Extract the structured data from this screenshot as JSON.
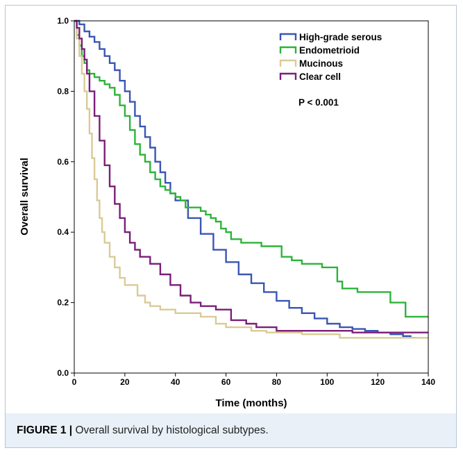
{
  "caption": {
    "label": "FIGURE 1 |",
    "text": " Overall survival by histological subtypes."
  },
  "chart_data": {
    "type": "line",
    "step": true,
    "xlabel": "Time (months)",
    "ylabel": "Overall survival",
    "xlim": [
      0,
      140
    ],
    "ylim": [
      0.0,
      1.0
    ],
    "xticks": [
      "0",
      "20",
      "40",
      "60",
      "80",
      "100",
      "120",
      "140"
    ],
    "yticks": [
      "0.0",
      "0.2",
      "0.4",
      "0.6",
      "0.8",
      "1.0"
    ],
    "grid": false,
    "legend_position": "top-right",
    "annotation": "P < 0.001",
    "series": [
      {
        "name": "High-grade serous",
        "color": "#3a55b4",
        "x": [
          0,
          2,
          4,
          6,
          8,
          10,
          12,
          14,
          16,
          18,
          20,
          22,
          24,
          26,
          28,
          30,
          32,
          34,
          36,
          38,
          40,
          45,
          50,
          55,
          60,
          65,
          70,
          75,
          80,
          85,
          90,
          95,
          100,
          105,
          110,
          115,
          120,
          125,
          130,
          133,
          135
        ],
        "y": [
          1.0,
          0.99,
          0.97,
          0.955,
          0.94,
          0.92,
          0.9,
          0.88,
          0.86,
          0.83,
          0.8,
          0.77,
          0.73,
          0.7,
          0.67,
          0.64,
          0.6,
          0.57,
          0.54,
          0.51,
          0.49,
          0.44,
          0.395,
          0.35,
          0.315,
          0.28,
          0.255,
          0.23,
          0.205,
          0.185,
          0.17,
          0.155,
          0.14,
          0.13,
          0.125,
          0.12,
          0.115,
          0.11,
          0.105,
          0.1,
          0.1
        ]
      },
      {
        "name": "Endometrioid",
        "color": "#2db33a",
        "x": [
          0,
          1,
          2,
          3,
          4,
          5,
          6,
          8,
          10,
          12,
          14,
          16,
          18,
          20,
          22,
          24,
          26,
          28,
          30,
          32,
          34,
          36,
          38,
          40,
          42,
          44,
          48,
          50,
          52,
          54,
          56,
          58,
          60,
          62,
          66,
          70,
          74,
          76,
          82,
          86,
          90,
          98,
          104,
          106,
          112,
          125,
          131,
          140
        ],
        "y": [
          1.0,
          0.96,
          0.93,
          0.9,
          0.88,
          0.86,
          0.85,
          0.84,
          0.83,
          0.82,
          0.81,
          0.79,
          0.76,
          0.73,
          0.69,
          0.65,
          0.62,
          0.6,
          0.57,
          0.55,
          0.53,
          0.52,
          0.51,
          0.5,
          0.49,
          0.47,
          0.47,
          0.46,
          0.45,
          0.44,
          0.43,
          0.41,
          0.4,
          0.38,
          0.37,
          0.37,
          0.36,
          0.36,
          0.33,
          0.32,
          0.31,
          0.3,
          0.26,
          0.24,
          0.23,
          0.2,
          0.16,
          0.16
        ]
      },
      {
        "name": "Mucinous",
        "color": "#d9cb95",
        "x": [
          0,
          1,
          2,
          3,
          4,
          5,
          6,
          7,
          8,
          9,
          10,
          11,
          12,
          14,
          16,
          18,
          20,
          25,
          28,
          30,
          34,
          40,
          50,
          56,
          60,
          70,
          76,
          80,
          90,
          100,
          105,
          110,
          140
        ],
        "y": [
          1.0,
          0.95,
          0.9,
          0.85,
          0.8,
          0.75,
          0.68,
          0.61,
          0.55,
          0.49,
          0.44,
          0.4,
          0.37,
          0.33,
          0.3,
          0.27,
          0.25,
          0.22,
          0.2,
          0.19,
          0.18,
          0.17,
          0.16,
          0.14,
          0.13,
          0.12,
          0.115,
          0.115,
          0.11,
          0.11,
          0.1,
          0.1,
          0.1
        ]
      },
      {
        "name": "Clear cell",
        "color": "#7a1e78",
        "x": [
          0,
          1,
          2,
          3,
          4,
          5,
          6,
          8,
          10,
          12,
          14,
          16,
          18,
          20,
          22,
          24,
          26,
          30,
          34,
          38,
          42,
          46,
          50,
          56,
          62,
          68,
          72,
          80,
          90,
          110,
          140
        ],
        "y": [
          1.0,
          0.98,
          0.95,
          0.92,
          0.89,
          0.85,
          0.8,
          0.73,
          0.66,
          0.59,
          0.53,
          0.48,
          0.44,
          0.4,
          0.37,
          0.35,
          0.33,
          0.31,
          0.28,
          0.25,
          0.22,
          0.2,
          0.19,
          0.18,
          0.15,
          0.14,
          0.13,
          0.12,
          0.12,
          0.115,
          0.115
        ]
      }
    ]
  }
}
